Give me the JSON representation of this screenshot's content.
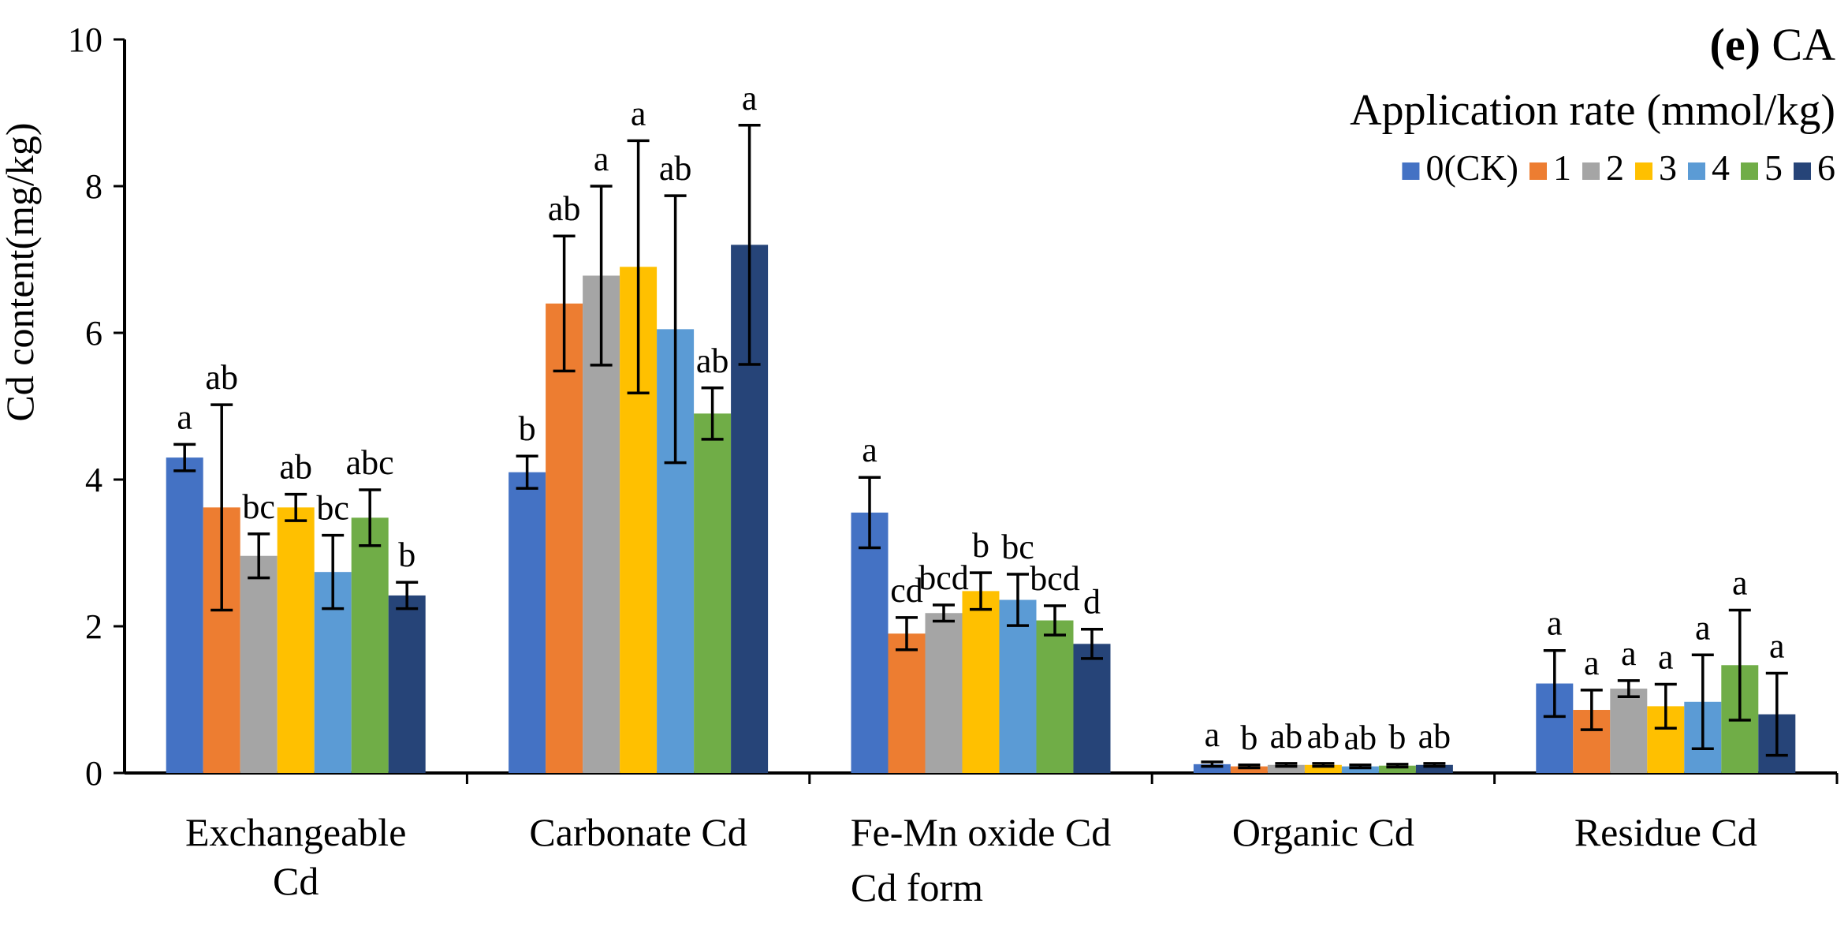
{
  "chart_data": {
    "type": "bar",
    "panel_label": {
      "bold": "(e)",
      "rest": " CA"
    },
    "xlabel": "Cd form",
    "ylabel": "Cd content(mg/kg)",
    "ylim": [
      0,
      10
    ],
    "yticks": [
      "0",
      "2",
      "4",
      "6",
      "8",
      "10"
    ],
    "categories": [
      {
        "lines": [
          "Exchangeable",
          "Cd"
        ]
      },
      {
        "lines": [
          "Carbonate Cd"
        ]
      },
      {
        "lines": [
          "Fe-Mn oxide Cd"
        ]
      },
      {
        "lines": [
          "Organic Cd"
        ]
      },
      {
        "lines": [
          "Residue Cd"
        ]
      }
    ],
    "legend_title": "Application rate (mmol/kg)",
    "series": [
      {
        "name": "0(CK)",
        "color": "#4472C4",
        "values": [
          4.3,
          4.1,
          3.55,
          0.12,
          1.22
        ],
        "errors": [
          0.18,
          0.22,
          0.48,
          0.03,
          0.45
        ],
        "letters": [
          "a",
          "b",
          "a",
          "a",
          "a"
        ]
      },
      {
        "name": "1",
        "color": "#ED7D31",
        "values": [
          3.62,
          6.4,
          1.9,
          0.09,
          0.86
        ],
        "errors": [
          1.4,
          0.92,
          0.22,
          0.02,
          0.27
        ],
        "letters": [
          "ab",
          "ab",
          "cd",
          "b",
          "a"
        ]
      },
      {
        "name": "2",
        "color": "#A5A5A5",
        "values": [
          2.96,
          6.78,
          2.18,
          0.11,
          1.15
        ],
        "errors": [
          0.3,
          1.22,
          0.11,
          0.02,
          0.11
        ],
        "letters": [
          "bc",
          "a",
          "bcd",
          "ab",
          "a"
        ]
      },
      {
        "name": "3",
        "color": "#FFC000",
        "values": [
          3.62,
          6.9,
          2.48,
          0.11,
          0.91
        ],
        "errors": [
          0.18,
          1.72,
          0.25,
          0.02,
          0.3
        ],
        "letters": [
          "ab",
          "a",
          "b",
          "ab",
          "a"
        ]
      },
      {
        "name": "4",
        "color": "#5B9BD5",
        "values": [
          2.74,
          6.05,
          2.36,
          0.09,
          0.97
        ],
        "errors": [
          0.5,
          1.82,
          0.35,
          0.02,
          0.64
        ],
        "letters": [
          "bc",
          "ab",
          "bc",
          "ab",
          "a"
        ]
      },
      {
        "name": "5",
        "color": "#70AD47",
        "values": [
          3.48,
          4.9,
          2.08,
          0.1,
          1.47
        ],
        "errors": [
          0.38,
          0.35,
          0.2,
          0.02,
          0.75
        ],
        "letters": [
          "abc",
          "ab",
          "bcd",
          "b",
          "a"
        ]
      },
      {
        "name": "6",
        "color": "#264478",
        "values": [
          2.42,
          7.2,
          1.76,
          0.11,
          0.8
        ],
        "errors": [
          0.18,
          1.63,
          0.2,
          0.02,
          0.56
        ],
        "letters": [
          "b",
          "a",
          "d",
          "ab",
          "a"
        ]
      }
    ],
    "grid": false,
    "legend_position": "top-right"
  }
}
